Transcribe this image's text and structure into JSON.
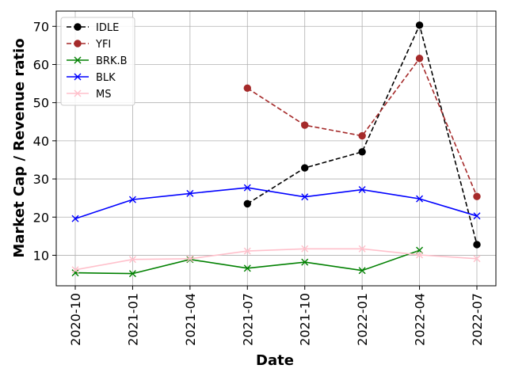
{
  "chart_data": {
    "type": "line",
    "title": "",
    "xlabel": "Date",
    "ylabel": "Market Cap / Revenue ratio",
    "categories": [
      "2020-10",
      "2021-01",
      "2021-04",
      "2021-07",
      "2021-10",
      "2022-01",
      "2022-04",
      "2022-07"
    ],
    "ylim": [
      2,
      74
    ],
    "yticks": [
      10,
      20,
      30,
      40,
      50,
      60,
      70
    ],
    "grid": true,
    "legend_position": "top-left",
    "series": [
      {
        "name": "IDLE",
        "color": "#000000",
        "dash": "dashed",
        "marker": "circle",
        "values": [
          null,
          null,
          null,
          23.5,
          32.9,
          37.1,
          70.3,
          12.8
        ]
      },
      {
        "name": "YFI",
        "color": "#a52a2a",
        "dash": "dashed",
        "marker": "circle",
        "values": [
          null,
          null,
          null,
          53.8,
          44.1,
          41.3,
          61.6,
          25.4
        ]
      },
      {
        "name": "BRK.B",
        "color": "#008000",
        "dash": "solid",
        "marker": "x",
        "values": [
          5.4,
          5.2,
          8.9,
          6.6,
          8.2,
          6.0,
          11.3,
          null
        ]
      },
      {
        "name": "BLK",
        "color": "#0000ff",
        "dash": "solid",
        "marker": "x",
        "values": [
          19.6,
          24.6,
          26.2,
          27.7,
          25.3,
          27.2,
          24.8,
          20.3
        ]
      },
      {
        "name": "MS",
        "color": "#ffc0cb",
        "dash": "solid",
        "marker": "x",
        "values": [
          6.2,
          8.9,
          9.1,
          11.1,
          11.7,
          11.7,
          10.1,
          9.1
        ]
      }
    ]
  }
}
